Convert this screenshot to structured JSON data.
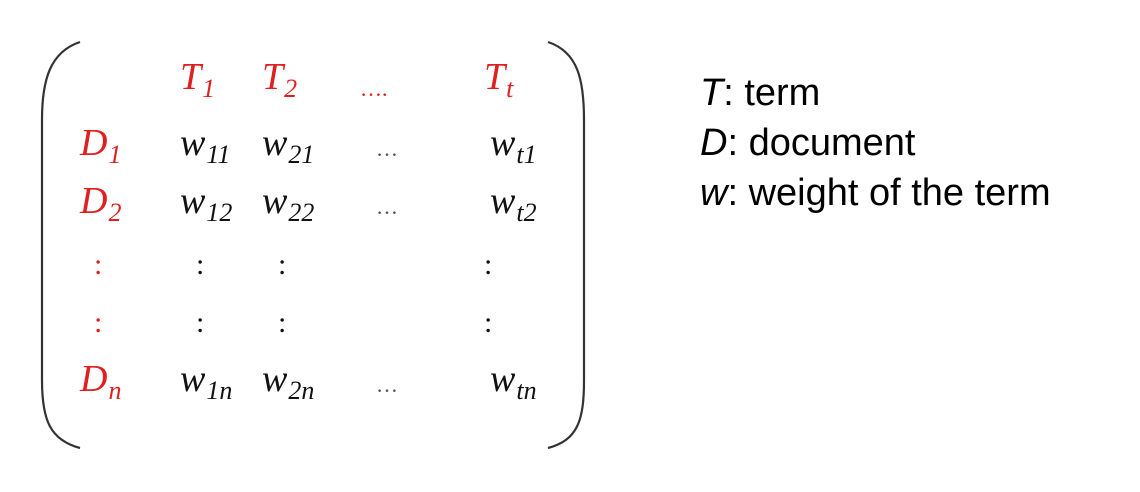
{
  "matrix": {
    "column_headers": [
      {
        "letter": "T",
        "sub": "1"
      },
      {
        "letter": "T",
        "sub": "2"
      },
      {
        "ellipsis": "…."
      },
      {
        "letter": "T",
        "sub": "t"
      }
    ],
    "row_headers": [
      {
        "letter": "D",
        "sub": "1"
      },
      {
        "letter": "D",
        "sub": "2"
      },
      {
        "vdots": ":"
      },
      {
        "vdots": ":"
      },
      {
        "letter": "D",
        "sub": "n"
      }
    ],
    "rows": [
      [
        {
          "letter": "w",
          "sub": "11"
        },
        {
          "letter": "w",
          "sub": "21"
        },
        {
          "ellipsis": "…"
        },
        {
          "letter": "w",
          "sub": "t1"
        }
      ],
      [
        {
          "letter": "w",
          "sub": "12"
        },
        {
          "letter": "w",
          "sub": "22"
        },
        {
          "ellipsis": "…"
        },
        {
          "letter": "w",
          "sub": "t2"
        }
      ],
      [
        {
          "vdots": ":"
        },
        {
          "vdots": ":"
        },
        null,
        {
          "vdots": ":"
        }
      ],
      [
        {
          "vdots": ":"
        },
        {
          "vdots": ":"
        },
        null,
        {
          "vdots": ":"
        }
      ],
      [
        {
          "letter": "w",
          "sub": "1n"
        },
        {
          "letter": "w",
          "sub": "2n"
        },
        {
          "ellipsis": "…"
        },
        {
          "letter": "w",
          "sub": "tn"
        }
      ]
    ],
    "colors": {
      "header": "#e02020",
      "body": "#111111",
      "bracket": "#333333"
    }
  },
  "legend": [
    {
      "symbol": "T",
      "text": ": term"
    },
    {
      "symbol": "D",
      "text": ": document"
    },
    {
      "symbol": "w",
      "text": ": weight of the term"
    }
  ]
}
